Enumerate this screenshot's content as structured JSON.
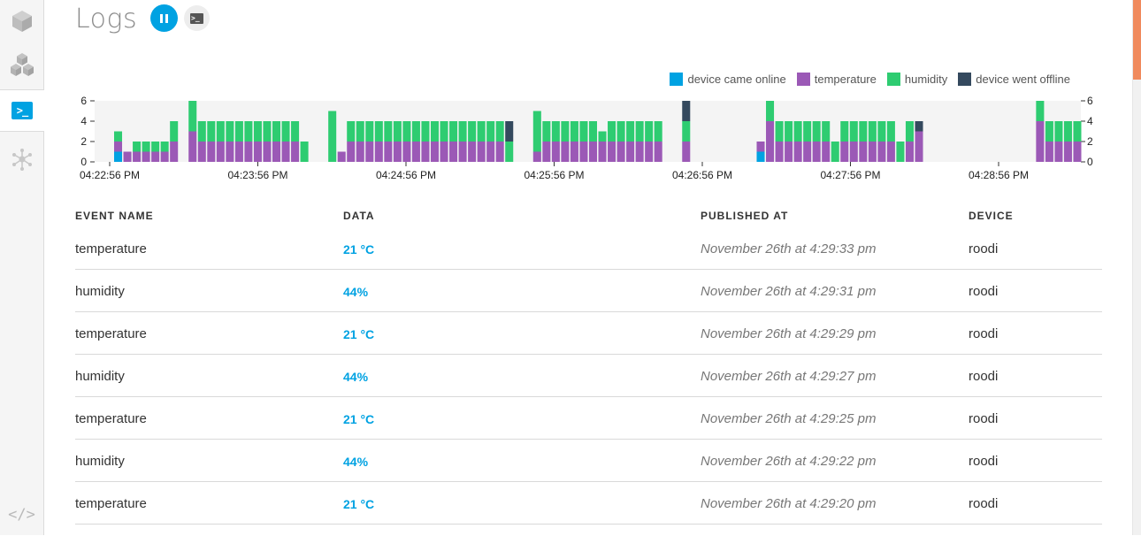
{
  "page": {
    "title": "Logs"
  },
  "header": {
    "pause_icon": "pause-icon",
    "console_icon": "terminal-icon"
  },
  "sidebar": {
    "items": [
      {
        "name": "devices",
        "icon": "cube-icon",
        "active": false
      },
      {
        "name": "products",
        "icon": "cubes-icon",
        "active": false
      },
      {
        "name": "logs",
        "icon": "terminal-icon",
        "active": true,
        "glyph": ">_"
      },
      {
        "name": "integrations",
        "icon": "network-icon",
        "active": false
      },
      {
        "name": "code",
        "icon": "code-icon",
        "glyph": "</>"
      }
    ]
  },
  "legend": [
    {
      "label": "device came online",
      "color": "#00a2e2"
    },
    {
      "label": "temperature",
      "color": "#9b59b6"
    },
    {
      "label": "humidity",
      "color": "#2ecc71"
    },
    {
      "label": "device went offline",
      "color": "#34495e"
    }
  ],
  "chart_data": {
    "type": "bar",
    "stacked": true,
    "ylim": [
      0,
      6
    ],
    "yticks": [
      0,
      2,
      4,
      6
    ],
    "xtick_labels": [
      "04:22:56 PM",
      "04:23:56 PM",
      "04:24:56 PM",
      "04:25:56 PM",
      "04:26:56 PM",
      "04:27:56 PM",
      "04:28:56 PM"
    ],
    "grid": false,
    "legend_position": "top-right",
    "series_order": [
      "device came online",
      "temperature",
      "humidity",
      "device went offline"
    ],
    "bars": [
      [
        1,
        1,
        1,
        0
      ],
      [
        0,
        1,
        0,
        0
      ],
      [
        0,
        1,
        1,
        0
      ],
      [
        0,
        1,
        1,
        0
      ],
      [
        0,
        1,
        1,
        0
      ],
      [
        0,
        1,
        1,
        0
      ],
      [
        0,
        2,
        2,
        0
      ],
      [
        0,
        0,
        0,
        0
      ],
      [
        0,
        3,
        3,
        0
      ],
      [
        0,
        2,
        2,
        0
      ],
      [
        0,
        2,
        2,
        0
      ],
      [
        0,
        2,
        2,
        0
      ],
      [
        0,
        2,
        2,
        0
      ],
      [
        0,
        2,
        2,
        0
      ],
      [
        0,
        2,
        2,
        0
      ],
      [
        0,
        2,
        2,
        0
      ],
      [
        0,
        2,
        2,
        0
      ],
      [
        0,
        2,
        2,
        0
      ],
      [
        0,
        2,
        2,
        0
      ],
      [
        0,
        2,
        2,
        0
      ],
      [
        0,
        0,
        2,
        0
      ],
      [
        0,
        0,
        0,
        0
      ],
      [
        0,
        0,
        0,
        0
      ],
      [
        0,
        0,
        5,
        0
      ],
      [
        0,
        1,
        0,
        0
      ],
      [
        0,
        2,
        2,
        0
      ],
      [
        0,
        2,
        2,
        0
      ],
      [
        0,
        2,
        2,
        0
      ],
      [
        0,
        2,
        2,
        0
      ],
      [
        0,
        2,
        2,
        0
      ],
      [
        0,
        2,
        2,
        0
      ],
      [
        0,
        2,
        2,
        0
      ],
      [
        0,
        2,
        2,
        0
      ],
      [
        0,
        2,
        2,
        0
      ],
      [
        0,
        2,
        2,
        0
      ],
      [
        0,
        2,
        2,
        0
      ],
      [
        0,
        2,
        2,
        0
      ],
      [
        0,
        2,
        2,
        0
      ],
      [
        0,
        2,
        2,
        0
      ],
      [
        0,
        2,
        2,
        0
      ],
      [
        0,
        2,
        2,
        0
      ],
      [
        0,
        2,
        2,
        0
      ],
      [
        0,
        0,
        2,
        2
      ],
      [
        0,
        0,
        0,
        0
      ],
      [
        0,
        0,
        0,
        0
      ],
      [
        0,
        1,
        4,
        0
      ],
      [
        0,
        2,
        2,
        0
      ],
      [
        0,
        2,
        2,
        0
      ],
      [
        0,
        2,
        2,
        0
      ],
      [
        0,
        2,
        2,
        0
      ],
      [
        0,
        2,
        2,
        0
      ],
      [
        0,
        2,
        2,
        0
      ],
      [
        0,
        2,
        1,
        0
      ],
      [
        0,
        2,
        2,
        0
      ],
      [
        0,
        2,
        2,
        0
      ],
      [
        0,
        2,
        2,
        0
      ],
      [
        0,
        2,
        2,
        0
      ],
      [
        0,
        2,
        2,
        0
      ],
      [
        0,
        2,
        2,
        0
      ],
      [
        0,
        0,
        0,
        0
      ],
      [
        0,
        0,
        0,
        0
      ],
      [
        0,
        2,
        2,
        2
      ],
      [
        0,
        0,
        0,
        0
      ],
      [
        0,
        0,
        0,
        0
      ],
      [
        0,
        0,
        0,
        0
      ],
      [
        0,
        0,
        0,
        0
      ],
      [
        0,
        0,
        0,
        0
      ],
      [
        0,
        0,
        0,
        0
      ],
      [
        0,
        0,
        0,
        0
      ],
      [
        1,
        1,
        0,
        0
      ],
      [
        0,
        4,
        2,
        0
      ],
      [
        0,
        2,
        2,
        0
      ],
      [
        0,
        2,
        2,
        0
      ],
      [
        0,
        2,
        2,
        0
      ],
      [
        0,
        2,
        2,
        0
      ],
      [
        0,
        2,
        2,
        0
      ],
      [
        0,
        2,
        2,
        0
      ],
      [
        0,
        0,
        2,
        0
      ],
      [
        0,
        2,
        2,
        0
      ],
      [
        0,
        2,
        2,
        0
      ],
      [
        0,
        2,
        2,
        0
      ],
      [
        0,
        2,
        2,
        0
      ],
      [
        0,
        2,
        2,
        0
      ],
      [
        0,
        2,
        2,
        0
      ],
      [
        0,
        0,
        2,
        0
      ],
      [
        0,
        2,
        2,
        0
      ],
      [
        0,
        3,
        0,
        1
      ],
      [
        0,
        0,
        0,
        0
      ],
      [
        0,
        0,
        0,
        0
      ],
      [
        0,
        0,
        0,
        0
      ],
      [
        0,
        0,
        0,
        0
      ],
      [
        0,
        0,
        0,
        0
      ],
      [
        0,
        0,
        0,
        0
      ],
      [
        0,
        0,
        0,
        0
      ],
      [
        0,
        0,
        0,
        0
      ],
      [
        0,
        0,
        0,
        0
      ],
      [
        0,
        0,
        0,
        0
      ],
      [
        0,
        0,
        0,
        0
      ],
      [
        0,
        0,
        0,
        0
      ],
      [
        0,
        4,
        2,
        0
      ],
      [
        0,
        2,
        2,
        0
      ],
      [
        0,
        2,
        2,
        0
      ],
      [
        0,
        2,
        2,
        0
      ],
      [
        0,
        2,
        2,
        0
      ]
    ],
    "ylabel": "",
    "xlabel": ""
  },
  "table": {
    "headers": [
      "EVENT NAME",
      "DATA",
      "PUBLISHED AT",
      "DEVICE"
    ],
    "rows": [
      {
        "event": "temperature",
        "data": "21 °C",
        "published": "November 26th at 4:29:33 pm",
        "device": "roodi"
      },
      {
        "event": "humidity",
        "data": "44%",
        "published": "November 26th at 4:29:31 pm",
        "device": "roodi"
      },
      {
        "event": "temperature",
        "data": "21 °C",
        "published": "November 26th at 4:29:29 pm",
        "device": "roodi"
      },
      {
        "event": "humidity",
        "data": "44%",
        "published": "November 26th at 4:29:27 pm",
        "device": "roodi"
      },
      {
        "event": "temperature",
        "data": "21 °C",
        "published": "November 26th at 4:29:25 pm",
        "device": "roodi"
      },
      {
        "event": "humidity",
        "data": "44%",
        "published": "November 26th at 4:29:22 pm",
        "device": "roodi"
      },
      {
        "event": "temperature",
        "data": "21 °C",
        "published": "November 26th at 4:29:20 pm",
        "device": "roodi"
      }
    ]
  }
}
